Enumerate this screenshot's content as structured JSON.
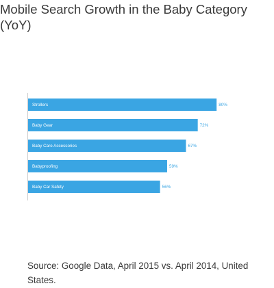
{
  "title": "Mobile Search Growth in the Baby Category (YoY)",
  "source": "Source: Google Data, April 2015 vs. April 2014, United States.",
  "colors": {
    "bar": "#3aa5e3",
    "bar_label": "#ffffff",
    "value_label": "#3aa5e3",
    "axis": "#cccccc"
  },
  "chart_data": {
    "type": "bar",
    "orientation": "horizontal",
    "categories": [
      "Strollers",
      "Baby Gear",
      "Baby Care Accessories",
      "Babyproofing",
      "Baby Car Safety"
    ],
    "values": [
      80,
      72,
      67,
      59,
      56
    ],
    "value_labels": [
      "80%",
      "72%",
      "67%",
      "59%",
      "56%"
    ],
    "xlim": [
      0,
      100
    ],
    "grid": false,
    "legend": "none"
  }
}
